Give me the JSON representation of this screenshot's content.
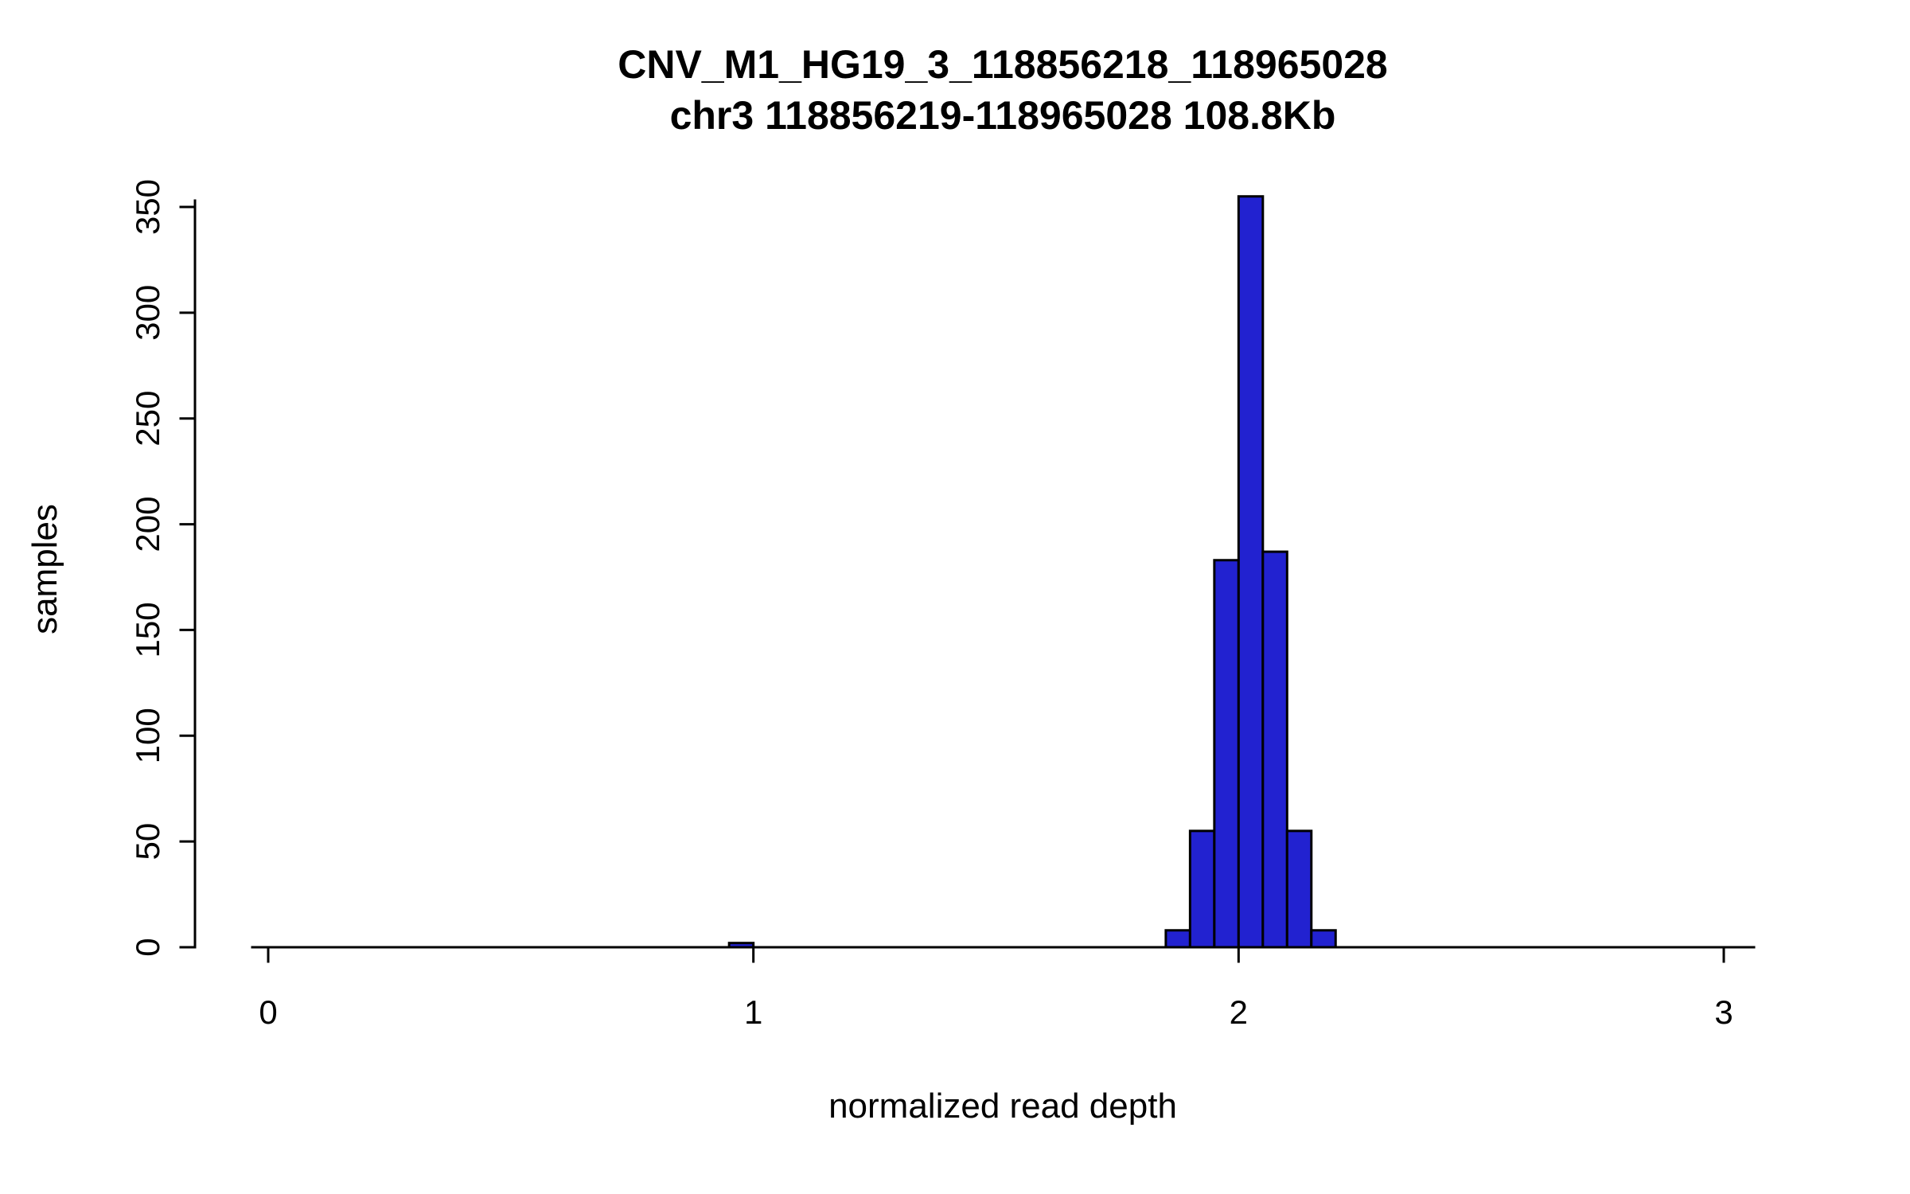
{
  "chart_data": {
    "type": "bar",
    "chart_kind": "histogram",
    "title": "CNV_M1_HG19_3_118856218_118965028",
    "subtitle": "chr3 118856219-118965028 108.8Kb",
    "xlabel": "normalized read depth",
    "ylabel": "samples",
    "xlim": [
      0,
      3
    ],
    "ylim": [
      0,
      355
    ],
    "xticks": [
      "0",
      "1",
      "2",
      "3"
    ],
    "yticks": [
      "0",
      "50",
      "100",
      "150",
      "200",
      "250",
      "300",
      "350"
    ],
    "grid": false,
    "legend": "none",
    "bar_color": "#2222D0",
    "bar_edge_color": "#000000",
    "axis_color": "#000000",
    "bin_width": 0.05,
    "bins": [
      {
        "x0": 0.95,
        "count": 2
      },
      {
        "x0": 1.85,
        "count": 8
      },
      {
        "x0": 1.9,
        "count": 55
      },
      {
        "x0": 1.95,
        "count": 183
      },
      {
        "x0": 2.0,
        "count": 355
      },
      {
        "x0": 2.05,
        "count": 187
      },
      {
        "x0": 2.1,
        "count": 55
      },
      {
        "x0": 2.15,
        "count": 8
      }
    ]
  }
}
